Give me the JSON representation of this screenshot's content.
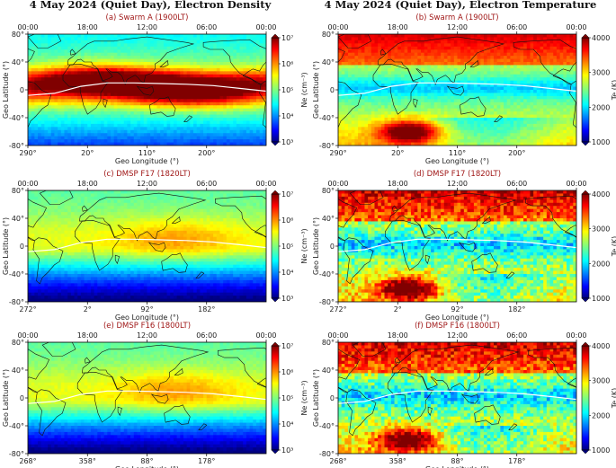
{
  "columns": [
    "4 May 2024 (Quiet Day), Electron Density",
    "4 May 2024 (Quiet Day), Electron Temperature"
  ],
  "colors": {
    "panel_title": "#a01818",
    "equator_line": "#ffffff",
    "coast": "#111111"
  },
  "chart_data": [
    {
      "type": "heatmap",
      "id": "a",
      "title": "(a) Swarm A (1900LT)",
      "variable": "density",
      "xlabel": "Geo Longitude (°)",
      "ylabel": "Geo Latitude (°)",
      "x_ticks": [
        "290°",
        "20°",
        "110°",
        "200°"
      ],
      "top_ticks": [
        "00:00",
        "18:00",
        "12:00",
        "06:00",
        "00:00"
      ],
      "y_ticks": [
        "80°",
        "40°",
        "0",
        "-40°",
        "-80°"
      ],
      "ylim": [
        -80,
        80
      ],
      "colorbar": {
        "label": "Ne (cm⁻³)",
        "ticks": [
          "10⁷",
          "10⁶",
          "10⁵",
          "10⁴",
          "10³"
        ],
        "range": [
          1000,
          10000000
        ],
        "scale": "log"
      },
      "dip_equator_lat": [
        -8,
        -5,
        5,
        10,
        10,
        9,
        8,
        6,
        2,
        -2
      ]
    },
    {
      "type": "heatmap",
      "id": "b",
      "title": "(b) Swarm A (1900LT)",
      "variable": "temperature",
      "xlabel": "Geo Longitude (°)",
      "ylabel": "Geo Latitude (°)",
      "x_ticks": [
        "290°",
        "20°",
        "110°",
        "200°"
      ],
      "top_ticks": [
        "00:00",
        "18:00",
        "12:00",
        "06:00",
        "00:00"
      ],
      "y_ticks": [
        "80°",
        "40°",
        "0",
        "-40°",
        "-80°"
      ],
      "ylim": [
        -80,
        80
      ],
      "colorbar": {
        "label": "Te (K)",
        "ticks": [
          "4000",
          "3000",
          "2000",
          "1000"
        ],
        "range": [
          1000,
          4000
        ],
        "scale": "linear"
      },
      "dip_equator_lat": [
        -8,
        -5,
        5,
        10,
        10,
        9,
        8,
        6,
        2,
        -2
      ]
    },
    {
      "type": "heatmap",
      "id": "c",
      "title": "(c) DMSP F17 (1820LT)",
      "variable": "density",
      "xlabel": "Geo Longitude (°)",
      "ylabel": "Geo Latitude (°)",
      "x_ticks": [
        "272°",
        "2°",
        "92°",
        "182°"
      ],
      "top_ticks": [
        "00:00",
        "18:00",
        "12:00",
        "06:00",
        "00:00"
      ],
      "y_ticks": [
        "80°",
        "40°",
        "0",
        "-40°",
        "-80°"
      ],
      "ylim": [
        -80,
        80
      ],
      "colorbar": {
        "label": "Ne (cm⁻³)",
        "ticks": [
          "10⁷",
          "10⁶",
          "10⁵",
          "10⁴",
          "10³"
        ],
        "range": [
          1000,
          10000000
        ],
        "scale": "log"
      },
      "dip_equator_lat": [
        -8,
        -5,
        5,
        10,
        10,
        9,
        8,
        6,
        2,
        -2
      ]
    },
    {
      "type": "heatmap",
      "id": "d",
      "title": "(d) DMSP F17 (1820LT)",
      "variable": "temperature",
      "xlabel": "Geo Longitude (°)",
      "ylabel": "Geo Latitude (°)",
      "x_ticks": [
        "272°",
        "2°",
        "92°",
        "182°"
      ],
      "top_ticks": [
        "00:00",
        "18:00",
        "12:00",
        "06:00",
        "00:00"
      ],
      "y_ticks": [
        "80°",
        "40°",
        "0",
        "-40°",
        "-80°"
      ],
      "ylim": [
        -80,
        80
      ],
      "colorbar": {
        "label": "Te (K)",
        "ticks": [
          "4000",
          "3000",
          "2000",
          "1000"
        ],
        "range": [
          1000,
          4000
        ],
        "scale": "linear"
      },
      "dip_equator_lat": [
        -8,
        -5,
        5,
        10,
        10,
        9,
        8,
        6,
        2,
        -2
      ]
    },
    {
      "type": "heatmap",
      "id": "e",
      "title": "(e) DMSP F16 (1800LT)",
      "variable": "density",
      "xlabel": "Geo Longitude (°)",
      "ylabel": "Geo Latitude (°)",
      "x_ticks": [
        "268°",
        "358°",
        "88°",
        "178°"
      ],
      "top_ticks": [
        "00:00",
        "18:00",
        "12:00",
        "06:00",
        "00:00"
      ],
      "y_ticks": [
        "80°",
        "40°",
        "0",
        "-40°",
        "-80°"
      ],
      "ylim": [
        -80,
        80
      ],
      "colorbar": {
        "label": "Ne (cm⁻³)",
        "ticks": [
          "10⁷",
          "10⁶",
          "10⁵",
          "10⁴",
          "10³"
        ],
        "range": [
          1000,
          10000000
        ],
        "scale": "log"
      },
      "dip_equator_lat": [
        -8,
        -5,
        5,
        10,
        10,
        9,
        8,
        6,
        2,
        -2
      ]
    },
    {
      "type": "heatmap",
      "id": "f",
      "title": "(f) DMSP F16 (1800LT)",
      "variable": "temperature",
      "xlabel": "Geo Longitude (°)",
      "ylabel": "Geo Latitude (°)",
      "x_ticks": [
        "268°",
        "358°",
        "88°",
        "178°"
      ],
      "top_ticks": [
        "00:00",
        "18:00",
        "12:00",
        "06:00",
        "00:00"
      ],
      "y_ticks": [
        "80°",
        "40°",
        "0",
        "-40°",
        "-80°"
      ],
      "ylim": [
        -80,
        80
      ],
      "colorbar": {
        "label": "Te (K)",
        "ticks": [
          "4000",
          "3000",
          "2000",
          "1000"
        ],
        "range": [
          1000,
          4000
        ],
        "scale": "linear"
      },
      "dip_equator_lat": [
        -8,
        -5,
        5,
        10,
        10,
        9,
        8,
        6,
        2,
        -2
      ]
    }
  ]
}
